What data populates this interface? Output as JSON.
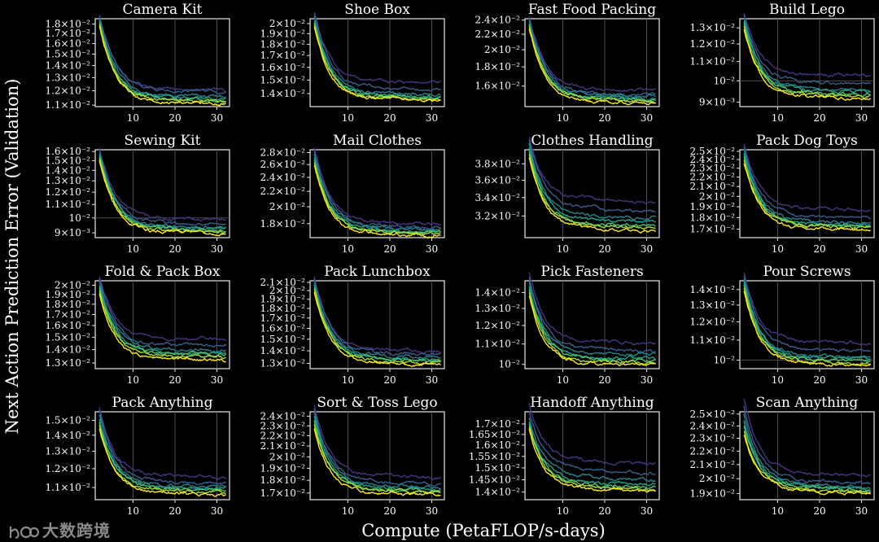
{
  "figure": {
    "ylabel": "Next Action Prediction Error (Validation)",
    "xlabel": "Compute (PetaFLOP/s-days)",
    "watermark": "大数跨境",
    "series_colors": [
      "#46327e",
      "#365c8d",
      "#277f8e",
      "#1fa187",
      "#4ac16d",
      "#a0da39",
      "#fde725"
    ]
  },
  "chart_data": [
    {
      "type": "line",
      "title": "Camera Kit",
      "xticks": [
        10,
        20,
        30
      ],
      "xlim": [
        1,
        33
      ],
      "ylim": [
        0.0109,
        0.0186
      ],
      "yscale": "log",
      "ytick_values": [
        0.011,
        0.012,
        0.013,
        0.014,
        0.015,
        0.016,
        0.017,
        0.018
      ],
      "ytick_labels": [
        "1.1×10⁻²",
        "1.2×10⁻²",
        "1.3×10⁻²",
        "1.4×10⁻²",
        "1.5×10⁻²",
        "1.6×10⁻²",
        "1.7×10⁻²",
        "1.8×10⁻²"
      ],
      "series": [
        {
          "start": 0.0178,
          "end": 0.0122
        },
        {
          "start": 0.018,
          "end": 0.0121
        },
        {
          "start": 0.0176,
          "end": 0.0118
        },
        {
          "start": 0.0174,
          "end": 0.0116
        },
        {
          "start": 0.0172,
          "end": 0.0115
        },
        {
          "start": 0.017,
          "end": 0.0114
        },
        {
          "start": 0.0168,
          "end": 0.0113
        }
      ],
      "hline": null
    },
    {
      "type": "line",
      "title": "Shoe Box",
      "xticks": [
        10,
        20,
        30
      ],
      "xlim": [
        1,
        33
      ],
      "ylim": [
        0.0131,
        0.0205
      ],
      "yscale": "log",
      "ytick_values": [
        0.014,
        0.015,
        0.016,
        0.017,
        0.018,
        0.019,
        0.02
      ],
      "ytick_labels": [
        "1.4×10⁻²",
        "1.5×10⁻²",
        "1.6×10⁻²",
        "1.7×10⁻²",
        "1.8×10⁻²",
        "1.9×10⁻²",
        "2×10⁻²"
      ],
      "series": [
        {
          "start": 0.0198,
          "end": 0.015
        },
        {
          "start": 0.02,
          "end": 0.0145
        },
        {
          "start": 0.0196,
          "end": 0.0141
        },
        {
          "start": 0.0192,
          "end": 0.014
        },
        {
          "start": 0.019,
          "end": 0.0139
        },
        {
          "start": 0.0188,
          "end": 0.0138
        },
        {
          "start": 0.0186,
          "end": 0.0137
        }
      ],
      "hline": null
    },
    {
      "type": "line",
      "title": "Fast Food Packing",
      "xticks": [
        10,
        20,
        30
      ],
      "xlim": [
        1,
        33
      ],
      "ylim": [
        0.0141,
        0.0242
      ],
      "yscale": "log",
      "ytick_values": [
        0.016,
        0.018,
        0.02,
        0.022,
        0.024
      ],
      "ytick_labels": [
        "1.6×10⁻²",
        "1.8×10⁻²",
        "2×10⁻²",
        "2.2×10⁻²",
        "2.4×10⁻²"
      ],
      "series": [
        {
          "start": 0.0232,
          "end": 0.0158
        },
        {
          "start": 0.023,
          "end": 0.0154
        },
        {
          "start": 0.0226,
          "end": 0.0152
        },
        {
          "start": 0.0222,
          "end": 0.015
        },
        {
          "start": 0.022,
          "end": 0.0149
        },
        {
          "start": 0.0218,
          "end": 0.0148
        },
        {
          "start": 0.0215,
          "end": 0.0146
        }
      ],
      "hline": null
    },
    {
      "type": "line",
      "title": "Build Lego",
      "xticks": [
        10,
        20,
        30
      ],
      "xlim": [
        1,
        33
      ],
      "ylim": [
        0.0088,
        0.0136
      ],
      "yscale": "log",
      "ytick_values": [
        0.009,
        0.01,
        0.011,
        0.012,
        0.013
      ],
      "ytick_labels": [
        "9×10⁻³",
        "10⁻²",
        "1.1×10⁻²",
        "1.2×10⁻²",
        "1.3×10⁻²"
      ],
      "series": [
        {
          "start": 0.0132,
          "end": 0.0104
        },
        {
          "start": 0.0131,
          "end": 0.01
        },
        {
          "start": 0.0129,
          "end": 0.0097
        },
        {
          "start": 0.0127,
          "end": 0.0096
        },
        {
          "start": 0.0126,
          "end": 0.0095
        },
        {
          "start": 0.0124,
          "end": 0.0094
        },
        {
          "start": 0.0122,
          "end": 0.0093
        }
      ],
      "hline": 0.01
    },
    {
      "type": "line",
      "title": "Sewing Kit",
      "xticks": [
        10,
        20,
        30
      ],
      "xlim": [
        1,
        33
      ],
      "ylim": [
        0.0087,
        0.0162
      ],
      "yscale": "log",
      "ytick_values": [
        0.009,
        0.01,
        0.011,
        0.012,
        0.013,
        0.014,
        0.015,
        0.016
      ],
      "ytick_labels": [
        "9×10⁻³",
        "10⁻²",
        "1.1×10⁻²",
        "1.2×10⁻²",
        "1.3×10⁻²",
        "1.4×10⁻²",
        "1.5×10⁻²",
        "1.6×10⁻²"
      ],
      "series": [
        {
          "start": 0.0155,
          "end": 0.01
        },
        {
          "start": 0.0153,
          "end": 0.0097
        },
        {
          "start": 0.015,
          "end": 0.0095
        },
        {
          "start": 0.0148,
          "end": 0.0094
        },
        {
          "start": 0.0146,
          "end": 0.0093
        },
        {
          "start": 0.0144,
          "end": 0.0092
        },
        {
          "start": 0.0142,
          "end": 0.0091
        }
      ],
      "hline": 0.01
    },
    {
      "type": "line",
      "title": "Mail Clothes",
      "xticks": [
        10,
        20,
        30
      ],
      "xlim": [
        1,
        33
      ],
      "ylim": [
        0.0165,
        0.0285
      ],
      "yscale": "log",
      "ytick_values": [
        0.018,
        0.02,
        0.022,
        0.024,
        0.026,
        0.028
      ],
      "ytick_labels": [
        "1.8×10⁻²",
        "2×10⁻²",
        "2.2×10⁻²",
        "2.4×10⁻²",
        "2.6×10⁻²",
        "2.8×10⁻²"
      ],
      "series": [
        {
          "start": 0.0272,
          "end": 0.0182
        },
        {
          "start": 0.0268,
          "end": 0.0178
        },
        {
          "start": 0.0262,
          "end": 0.0176
        },
        {
          "start": 0.0256,
          "end": 0.0174
        },
        {
          "start": 0.0252,
          "end": 0.0173
        },
        {
          "start": 0.0248,
          "end": 0.0172
        },
        {
          "start": 0.0244,
          "end": 0.017
        }
      ],
      "hline": null
    },
    {
      "type": "line",
      "title": "Clothes Handling",
      "xticks": [
        10,
        20,
        30
      ],
      "xlim": [
        1,
        33
      ],
      "ylim": [
        0.0298,
        0.0398
      ],
      "yscale": "log",
      "ytick_values": [
        0.032,
        0.034,
        0.036,
        0.038
      ],
      "ytick_labels": [
        "3.2×10⁻²",
        "3.4×10⁻²",
        "3.6×10⁻²",
        "3.8×10⁻²"
      ],
      "series": [
        {
          "start": 0.0392,
          "end": 0.034
        },
        {
          "start": 0.0388,
          "end": 0.033
        },
        {
          "start": 0.0384,
          "end": 0.0322
        },
        {
          "start": 0.0378,
          "end": 0.0318
        },
        {
          "start": 0.0374,
          "end": 0.0314
        },
        {
          "start": 0.037,
          "end": 0.0312
        },
        {
          "start": 0.0366,
          "end": 0.0309
        }
      ],
      "hline": null
    },
    {
      "type": "line",
      "title": "Pack Dog Toys",
      "xticks": [
        10,
        20,
        30
      ],
      "xlim": [
        1,
        33
      ],
      "ylim": [
        0.0163,
        0.0252
      ],
      "yscale": "log",
      "ytick_values": [
        0.017,
        0.018,
        0.019,
        0.02,
        0.021,
        0.022,
        0.023,
        0.024,
        0.025
      ],
      "ytick_labels": [
        "1.7×10⁻²",
        "1.8×10⁻²",
        "1.9×10⁻²",
        "2×10⁻²",
        "2.1×10⁻²",
        "2.2×10⁻²",
        "2.3×10⁻²",
        "2.4×10⁻²",
        "2.5×10⁻²"
      ],
      "series": [
        {
          "start": 0.0245,
          "end": 0.019
        },
        {
          "start": 0.0242,
          "end": 0.0183
        },
        {
          "start": 0.0238,
          "end": 0.0178
        },
        {
          "start": 0.0234,
          "end": 0.0176
        },
        {
          "start": 0.023,
          "end": 0.0175
        },
        {
          "start": 0.0226,
          "end": 0.0174
        },
        {
          "start": 0.0222,
          "end": 0.0172
        }
      ],
      "hline": null
    },
    {
      "type": "line",
      "title": "Fold & Pack Box",
      "xticks": [
        10,
        20,
        30
      ],
      "xlim": [
        1,
        33
      ],
      "ylim": [
        0.0126,
        0.0205
      ],
      "yscale": "log",
      "ytick_values": [
        0.013,
        0.014,
        0.015,
        0.016,
        0.017,
        0.018,
        0.019,
        0.02
      ],
      "ytick_labels": [
        "1.3×10⁻²",
        "1.4×10⁻²",
        "1.5×10⁻²",
        "1.6×10⁻²",
        "1.7×10⁻²",
        "1.8×10⁻²",
        "1.9×10⁻²",
        "2×10⁻²"
      ],
      "series": [
        {
          "start": 0.0198,
          "end": 0.015
        },
        {
          "start": 0.0196,
          "end": 0.0145
        },
        {
          "start": 0.0192,
          "end": 0.0141
        },
        {
          "start": 0.0188,
          "end": 0.0139
        },
        {
          "start": 0.0186,
          "end": 0.0138
        },
        {
          "start": 0.0183,
          "end": 0.0136
        },
        {
          "start": 0.018,
          "end": 0.0134
        }
      ],
      "hline": null
    },
    {
      "type": "line",
      "title": "Pack Lunchbox",
      "xticks": [
        10,
        20,
        30
      ],
      "xlim": [
        1,
        33
      ],
      "ylim": [
        0.0126,
        0.0212
      ],
      "yscale": "log",
      "ytick_values": [
        0.013,
        0.014,
        0.015,
        0.016,
        0.017,
        0.018,
        0.019,
        0.02,
        0.021
      ],
      "ytick_labels": [
        "1.3×10⁻²",
        "1.4×10⁻²",
        "1.5×10⁻²",
        "1.6×10⁻²",
        "1.7×10⁻²",
        "1.8×10⁻²",
        "1.9×10⁻²",
        "2×10⁻²",
        "2.1×10⁻²"
      ],
      "series": [
        {
          "start": 0.0205,
          "end": 0.0142
        },
        {
          "start": 0.0202,
          "end": 0.0139
        },
        {
          "start": 0.0198,
          "end": 0.0137
        },
        {
          "start": 0.0195,
          "end": 0.0135
        },
        {
          "start": 0.0192,
          "end": 0.0134
        },
        {
          "start": 0.019,
          "end": 0.0133
        },
        {
          "start": 0.0187,
          "end": 0.0131
        }
      ],
      "hline": null
    },
    {
      "type": "line",
      "title": "Pick Fasteners",
      "xticks": [
        10,
        20,
        30
      ],
      "xlim": [
        1,
        33
      ],
      "ylim": [
        0.0098,
        0.0148
      ],
      "yscale": "log",
      "ytick_values": [
        0.01,
        0.011,
        0.012,
        0.013,
        0.014
      ],
      "ytick_labels": [
        "10⁻²",
        "1.1×10⁻²",
        "1.2×10⁻²",
        "1.3×10⁻²",
        "1.4×10⁻²"
      ],
      "series": [
        {
          "start": 0.0145,
          "end": 0.0112
        },
        {
          "start": 0.0142,
          "end": 0.0108
        },
        {
          "start": 0.0139,
          "end": 0.0106
        },
        {
          "start": 0.0136,
          "end": 0.0104
        },
        {
          "start": 0.0134,
          "end": 0.0103
        },
        {
          "start": 0.0132,
          "end": 0.0102
        },
        {
          "start": 0.013,
          "end": 0.0101
        }
      ],
      "hline": null
    },
    {
      "type": "line",
      "title": "Pour Screws",
      "xticks": [
        10,
        20,
        30
      ],
      "xlim": [
        1,
        33
      ],
      "ylim": [
        0.0096,
        0.0146
      ],
      "yscale": "log",
      "ytick_values": [
        0.01,
        0.011,
        0.012,
        0.013,
        0.014
      ],
      "ytick_labels": [
        "10⁻²",
        "1.1×10⁻²",
        "1.2×10⁻²",
        "1.3×10⁻²",
        "1.4×10⁻²"
      ],
      "series": [
        {
          "start": 0.0143,
          "end": 0.011
        },
        {
          "start": 0.0141,
          "end": 0.0106
        },
        {
          "start": 0.0139,
          "end": 0.0103
        },
        {
          "start": 0.0137,
          "end": 0.0102
        },
        {
          "start": 0.0135,
          "end": 0.0101
        },
        {
          "start": 0.0133,
          "end": 0.01
        },
        {
          "start": 0.0131,
          "end": 0.0099
        }
      ],
      "hline": 0.01
    },
    {
      "type": "line",
      "title": "Pack Anything",
      "xticks": [
        10,
        20,
        30
      ],
      "xlim": [
        1,
        33
      ],
      "ylim": [
        0.0104,
        0.0156
      ],
      "yscale": "log",
      "ytick_values": [
        0.011,
        0.012,
        0.013,
        0.014,
        0.015
      ],
      "ytick_labels": [
        "1.1×10⁻²",
        "1.2×10⁻²",
        "1.3×10⁻²",
        "1.4×10⁻²",
        "1.5×10⁻²"
      ],
      "series": [
        {
          "start": 0.015,
          "end": 0.0117
        },
        {
          "start": 0.0148,
          "end": 0.0114
        },
        {
          "start": 0.0145,
          "end": 0.0112
        },
        {
          "start": 0.0142,
          "end": 0.0111
        },
        {
          "start": 0.014,
          "end": 0.011
        },
        {
          "start": 0.0138,
          "end": 0.0109
        },
        {
          "start": 0.0136,
          "end": 0.0108
        }
      ],
      "hline": null
    },
    {
      "type": "line",
      "title": "Sort & Toss Lego",
      "xticks": [
        10,
        20,
        30
      ],
      "xlim": [
        1,
        33
      ],
      "ylim": [
        0.0165,
        0.0245
      ],
      "yscale": "log",
      "ytick_values": [
        0.017,
        0.018,
        0.019,
        0.02,
        0.021,
        0.022,
        0.023,
        0.024
      ],
      "ytick_labels": [
        "1.7×10⁻²",
        "1.8×10⁻²",
        "1.9×10⁻²",
        "2×10⁻²",
        "2.1×10⁻²",
        "2.2×10⁻²",
        "2.3×10⁻²",
        "2.4×10⁻²"
      ],
      "series": [
        {
          "start": 0.0238,
          "end": 0.0185
        },
        {
          "start": 0.0234,
          "end": 0.018
        },
        {
          "start": 0.023,
          "end": 0.0177
        },
        {
          "start": 0.0226,
          "end": 0.0175
        },
        {
          "start": 0.0222,
          "end": 0.0174
        },
        {
          "start": 0.0218,
          "end": 0.0173
        },
        {
          "start": 0.0214,
          "end": 0.0171
        }
      ],
      "hline": null
    },
    {
      "type": "line",
      "title": "Handoff Anything",
      "xticks": [
        10,
        20,
        30
      ],
      "xlim": [
        1,
        33
      ],
      "ylim": [
        0.0137,
        0.0176
      ],
      "yscale": "log",
      "ytick_values": [
        0.014,
        0.0145,
        0.015,
        0.0155,
        0.016,
        0.0165,
        0.017
      ],
      "ytick_labels": [
        "1.4×10⁻²",
        "1.45×10⁻²",
        "1.5×10⁻²",
        "1.55×10⁻²",
        "1.6×10⁻²",
        "1.65×10⁻²",
        "1.7×10⁻²"
      ],
      "series": [
        {
          "start": 0.017,
          "end": 0.0154
        },
        {
          "start": 0.0166,
          "end": 0.015
        },
        {
          "start": 0.0163,
          "end": 0.0147
        },
        {
          "start": 0.0161,
          "end": 0.0145
        },
        {
          "start": 0.016,
          "end": 0.0144
        },
        {
          "start": 0.0159,
          "end": 0.0143
        },
        {
          "start": 0.0158,
          "end": 0.0142
        }
      ],
      "hline": null
    },
    {
      "type": "line",
      "title": "Scan Anything",
      "xticks": [
        10,
        20,
        30
      ],
      "xlim": [
        1,
        33
      ],
      "ylim": [
        0.0186,
        0.0252
      ],
      "yscale": "log",
      "ytick_values": [
        0.019,
        0.02,
        0.021,
        0.022,
        0.023,
        0.024,
        0.025
      ],
      "ytick_labels": [
        "1.9×10⁻²",
        "2×10⁻²",
        "2.1×10⁻²",
        "2.2×10⁻²",
        "2.3×10⁻²",
        "2.4×10⁻²",
        "2.5×10⁻²"
      ],
      "series": [
        {
          "start": 0.0248,
          "end": 0.0205
        },
        {
          "start": 0.0242,
          "end": 0.02
        },
        {
          "start": 0.0236,
          "end": 0.0197
        },
        {
          "start": 0.023,
          "end": 0.0196
        },
        {
          "start": 0.0226,
          "end": 0.0195
        },
        {
          "start": 0.0222,
          "end": 0.0194
        },
        {
          "start": 0.0219,
          "end": 0.0193
        }
      ],
      "hline": null
    }
  ]
}
